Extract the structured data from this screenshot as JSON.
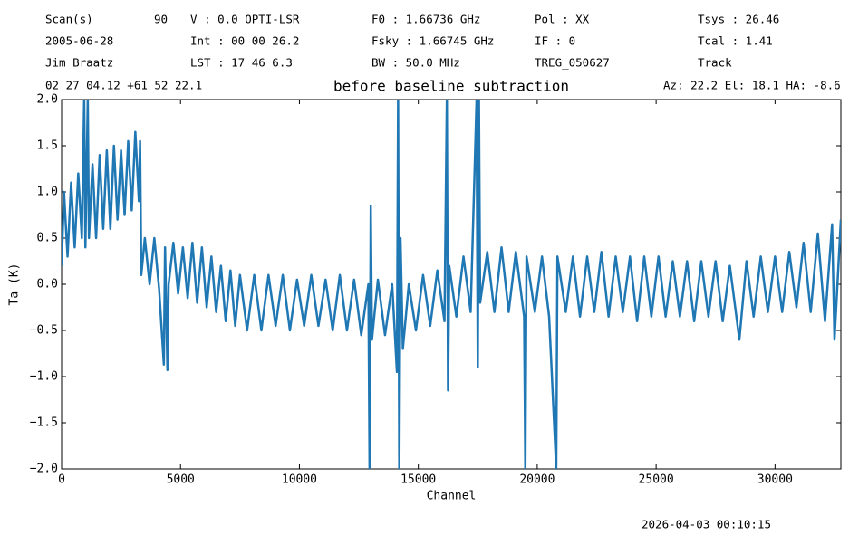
{
  "chart_data": {
    "type": "line",
    "title": "before baseline subtraction",
    "x_label": "Channel",
    "y_label": "Ta (K)",
    "annotations": [
      "Scan(s)",
      "90",
      "V   : 0.0 OPTI-LSR",
      "F0   :  1.66736 GHz",
      "Pol :   XX",
      "Tsys   :  26.46",
      "2005-06-28",
      "Int : 00 00 26.2",
      "Fsky :  1.66745 GHz",
      "IF  :    0",
      "Tcal   :  1.41",
      "Jim Braatz",
      "LST : 17 46 6.3",
      "BW   :  50.0 MHz",
      "TREG_050627",
      "Track",
      "02 27 04.12  +61 52 22.1",
      "Az: 22.2  El: 18.1  HA: -8.6",
      "2026-04-03 00:10:15"
    ],
    "xlim": [
      0,
      32768
    ],
    "ylim": [
      -2,
      2
    ],
    "xticks": [
      0,
      5000,
      10000,
      15000,
      20000,
      25000,
      30000
    ],
    "yticks": [
      {
        "value": -2,
        "label": "−2.0"
      },
      {
        "value": -1.5,
        "label": "−1.5"
      },
      {
        "value": -1,
        "label": "−1.0"
      },
      {
        "value": -0.5,
        "label": "−0.5"
      },
      {
        "value": 0,
        "label": "0.0"
      },
      {
        "value": 0.5,
        "label": "0.5"
      },
      {
        "value": 1,
        "label": "1.0"
      },
      {
        "value": 1.5,
        "label": "1.5"
      },
      {
        "value": 2,
        "label": "2.0"
      }
    ],
    "x": [
      0,
      100,
      250,
      400,
      550,
      700,
      850,
      950,
      1000,
      1100,
      1150,
      1300,
      1450,
      1600,
      1750,
      1900,
      2050,
      2200,
      2350,
      2500,
      2650,
      2800,
      2950,
      3100,
      3250,
      3300,
      3350,
      3500,
      3700,
      3900,
      4100,
      4300,
      4350,
      4450,
      4500,
      4700,
      4900,
      5100,
      5300,
      5500,
      5700,
      5900,
      6100,
      6300,
      6500,
      6700,
      6900,
      7100,
      7300,
      7500,
      7800,
      8100,
      8400,
      8700,
      9000,
      9300,
      9600,
      9900,
      10200,
      10500,
      10800,
      11100,
      11400,
      11700,
      12000,
      12300,
      12600,
      12900,
      12950,
      13000,
      13050,
      13300,
      13600,
      13900,
      14100,
      14150,
      14200,
      14250,
      14350,
      14600,
      14900,
      15200,
      15500,
      15800,
      16100,
      16200,
      16250,
      16300,
      16600,
      16900,
      17200,
      17450,
      17500,
      17550,
      17600,
      17900,
      18200,
      18500,
      18800,
      19100,
      19450,
      19500,
      19550,
      19900,
      20200,
      20500,
      20800,
      20850,
      21200,
      21500,
      21800,
      22100,
      22400,
      22700,
      23000,
      23300,
      23600,
      23900,
      24200,
      24500,
      24800,
      25100,
      25400,
      25700,
      26000,
      26300,
      26600,
      26900,
      27200,
      27500,
      27800,
      28100,
      28500,
      28800,
      29100,
      29400,
      29700,
      30000,
      30300,
      30600,
      30900,
      31200,
      31500,
      31800,
      32100,
      32400,
      32500,
      32768
    ],
    "series": [
      {
        "name": "Ta",
        "color": "#1f77b4",
        "values": [
          0.2,
          1.0,
          0.3,
          1.1,
          0.4,
          1.2,
          0.5,
          2.0,
          0.4,
          2.0,
          0.5,
          1.3,
          0.5,
          1.4,
          0.6,
          1.45,
          0.6,
          1.5,
          0.7,
          1.45,
          0.75,
          1.55,
          0.8,
          1.65,
          0.9,
          1.55,
          0.1,
          0.5,
          0.0,
          0.5,
          -0.05,
          -0.87,
          0.4,
          -0.93,
          0.0,
          0.45,
          -0.1,
          0.4,
          -0.15,
          0.45,
          -0.2,
          0.4,
          -0.25,
          0.3,
          -0.3,
          0.2,
          -0.4,
          0.15,
          -0.45,
          0.1,
          -0.5,
          0.1,
          -0.5,
          0.1,
          -0.45,
          0.1,
          -0.5,
          0.05,
          -0.45,
          0.1,
          -0.45,
          0.05,
          -0.5,
          0.1,
          -0.5,
          0.05,
          -0.55,
          0.0,
          -2.0,
          0.85,
          -0.6,
          0.05,
          -0.55,
          0.0,
          -0.95,
          2.0,
          -2.0,
          0.5,
          -0.7,
          0.0,
          -0.5,
          0.1,
          -0.45,
          0.15,
          -0.4,
          2.0,
          -1.15,
          0.2,
          -0.35,
          0.3,
          -0.3,
          2.0,
          -0.9,
          2.0,
          -0.2,
          0.35,
          -0.3,
          0.4,
          -0.3,
          0.35,
          -0.35,
          -2.0,
          0.3,
          -0.3,
          0.3,
          -0.35,
          -2.0,
          0.3,
          -0.3,
          0.3,
          -0.35,
          0.3,
          -0.3,
          0.35,
          -0.35,
          0.3,
          -0.3,
          0.3,
          -0.4,
          0.3,
          -0.35,
          0.3,
          -0.35,
          0.25,
          -0.35,
          0.25,
          -0.4,
          0.25,
          -0.35,
          0.25,
          -0.4,
          0.2,
          -0.6,
          0.25,
          -0.35,
          0.3,
          -0.3,
          0.3,
          -0.3,
          0.35,
          -0.25,
          0.45,
          -0.3,
          0.55,
          -0.4,
          0.65,
          -0.6,
          0.7
        ]
      }
    ]
  }
}
